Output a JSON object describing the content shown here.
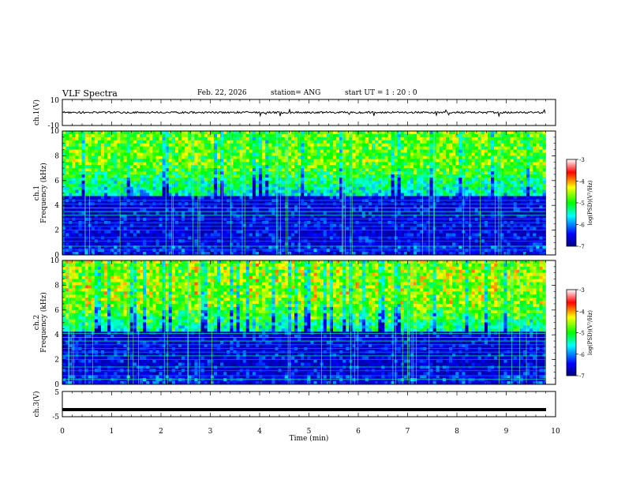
{
  "header": {
    "title": "VLF Spectra",
    "date": "Feb. 22, 2026",
    "station": "station= ANG",
    "start_ut": "start  UT =   1 : 20 : 0"
  },
  "chart_data": [
    {
      "type": "line",
      "name": "ch1-waveform",
      "ylabel": "ch.1(V)",
      "ylim": [
        -10,
        10
      ],
      "yticks": [
        "10",
        "-10"
      ],
      "xlim": [
        0,
        10
      ],
      "baseline": 0,
      "trace_color": "#000000"
    },
    {
      "type": "heatmap",
      "name": "ch1-spectrogram",
      "ylabel": "ch.1\nFrequency (kHz)",
      "ylabel_lines": [
        "ch.1",
        "Frequency (kHz)"
      ],
      "ylim": [
        0,
        10
      ],
      "yticks": [
        "0",
        "2",
        "4",
        "6",
        "8",
        "10"
      ],
      "xlim": [
        0,
        9.8
      ],
      "colorbar": {
        "label": "log(PSD)(V²/Hz)",
        "range": [
          -7,
          -3
        ],
        "ticks": [
          "-3",
          "-4",
          "-5",
          "-6",
          "-7"
        ],
        "colors": [
          "#000080",
          "#0000ff",
          "#00ffff",
          "#00ff00",
          "#ffff00",
          "#ff0000",
          "#ffffff"
        ]
      },
      "band_edge_khz": 4.8
    },
    {
      "type": "heatmap",
      "name": "ch2-spectrogram",
      "ylabel": "ch.2\nFrequency (kHz)",
      "ylabel_lines": [
        "ch.2",
        "Frequency (kHz)"
      ],
      "ylim": [
        0,
        10
      ],
      "yticks": [
        "0",
        "2",
        "4",
        "6",
        "8",
        "10"
      ],
      "xlim": [
        0,
        9.8
      ],
      "colorbar": {
        "label": "log(PSD)(V²/Hz)",
        "range": [
          -7,
          -3
        ],
        "ticks": [
          "-3",
          "-4",
          "-5",
          "-6",
          "-7"
        ],
        "colors": [
          "#000080",
          "#0000ff",
          "#00ffff",
          "#00ff00",
          "#ffff00",
          "#ff0000",
          "#ffffff"
        ]
      },
      "band_edge_khz": 4.2
    },
    {
      "type": "line",
      "name": "ch3-waveform",
      "ylabel": "ch.3(V)",
      "ylim": [
        -5,
        5
      ],
      "yticks": [
        "5",
        "-5"
      ],
      "xlim": [
        0,
        10
      ],
      "level": -2.2,
      "trace_color": "#000000"
    }
  ],
  "xaxis": {
    "label": "Time (min)",
    "range": [
      0,
      10
    ],
    "ticks": [
      "0",
      "1",
      "2",
      "3",
      "4",
      "5",
      "6",
      "7",
      "8",
      "9",
      "10"
    ]
  }
}
